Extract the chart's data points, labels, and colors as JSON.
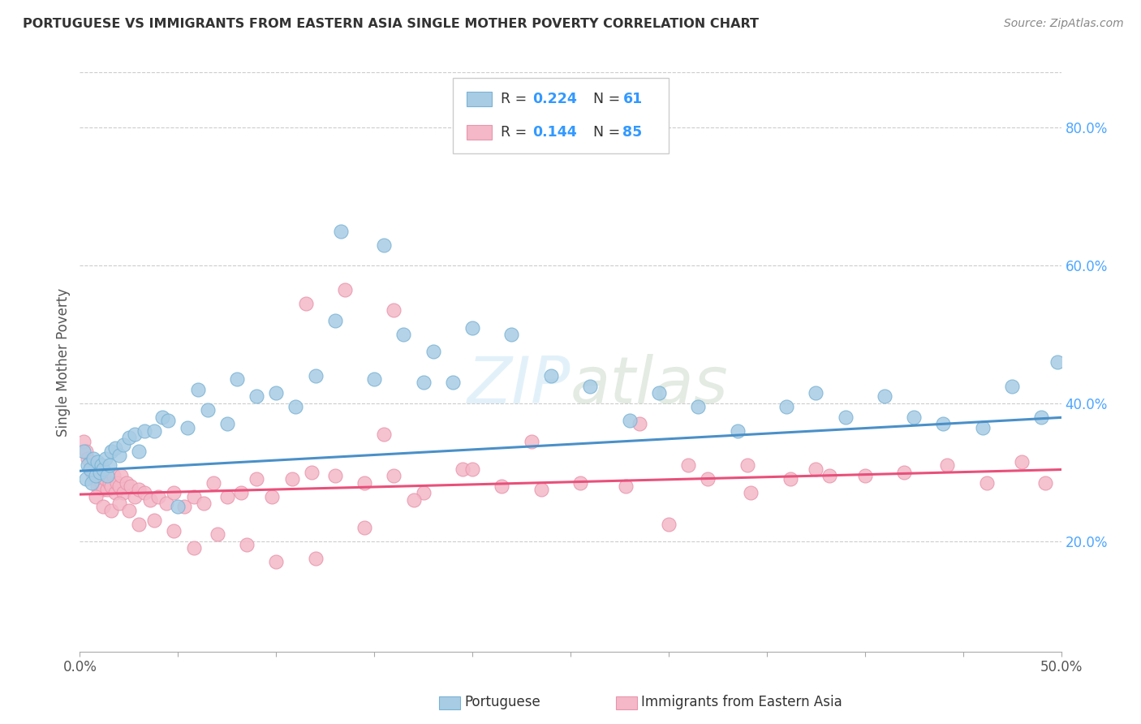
{
  "title": "PORTUGUESE VS IMMIGRANTS FROM EASTERN ASIA SINGLE MOTHER POVERTY CORRELATION CHART",
  "source": "Source: ZipAtlas.com",
  "ylabel": "Single Mother Poverty",
  "xlim": [
    0.0,
    0.5
  ],
  "ylim": [
    0.04,
    0.88
  ],
  "xtick_positions": [
    0.0,
    0.05,
    0.1,
    0.15,
    0.2,
    0.25,
    0.3,
    0.35,
    0.4,
    0.45,
    0.5
  ],
  "xticklabels": [
    "0.0%",
    "",
    "",
    "",
    "",
    "",
    "",
    "",
    "",
    "",
    "50.0%"
  ],
  "ytick_right_labels": [
    "20.0%",
    "40.0%",
    "60.0%",
    "80.0%"
  ],
  "ytick_right_values": [
    0.2,
    0.4,
    0.6,
    0.8
  ],
  "blue_color": "#a8cce4",
  "pink_color": "#f4b8c8",
  "blue_edge_color": "#7ab3d4",
  "pink_edge_color": "#e896ac",
  "blue_line_color": "#4a90c8",
  "pink_line_color": "#e8507a",
  "legend_r1": "0.224",
  "legend_n1": "61",
  "legend_r2": "0.144",
  "legend_n2": "85",
  "series1_label": "Portuguese",
  "series2_label": "Immigrants from Eastern Asia",
  "blue_intercept": 0.302,
  "blue_slope": 0.155,
  "pink_intercept": 0.268,
  "pink_slope": 0.072,
  "blue_x": [
    0.002,
    0.003,
    0.004,
    0.005,
    0.006,
    0.007,
    0.008,
    0.009,
    0.01,
    0.011,
    0.012,
    0.013,
    0.014,
    0.015,
    0.016,
    0.018,
    0.02,
    0.022,
    0.025,
    0.028,
    0.03,
    0.033,
    0.038,
    0.042,
    0.045,
    0.05,
    0.055,
    0.06,
    0.065,
    0.075,
    0.08,
    0.09,
    0.1,
    0.11,
    0.12,
    0.13,
    0.15,
    0.165,
    0.175,
    0.19,
    0.2,
    0.22,
    0.24,
    0.26,
    0.28,
    0.295,
    0.315,
    0.335,
    0.36,
    0.375,
    0.39,
    0.41,
    0.425,
    0.44,
    0.46,
    0.475,
    0.49,
    0.498,
    0.133,
    0.155,
    0.18
  ],
  "blue_y": [
    0.33,
    0.29,
    0.31,
    0.305,
    0.285,
    0.32,
    0.295,
    0.315,
    0.3,
    0.31,
    0.305,
    0.32,
    0.295,
    0.31,
    0.33,
    0.335,
    0.325,
    0.34,
    0.35,
    0.355,
    0.33,
    0.36,
    0.36,
    0.38,
    0.375,
    0.25,
    0.365,
    0.42,
    0.39,
    0.37,
    0.435,
    0.41,
    0.415,
    0.395,
    0.44,
    0.52,
    0.435,
    0.5,
    0.43,
    0.43,
    0.51,
    0.5,
    0.44,
    0.425,
    0.375,
    0.415,
    0.395,
    0.36,
    0.395,
    0.415,
    0.38,
    0.41,
    0.38,
    0.37,
    0.365,
    0.425,
    0.38,
    0.46,
    0.65,
    0.63,
    0.475
  ],
  "pink_x": [
    0.002,
    0.003,
    0.004,
    0.005,
    0.006,
    0.007,
    0.008,
    0.009,
    0.01,
    0.011,
    0.012,
    0.013,
    0.014,
    0.015,
    0.016,
    0.017,
    0.018,
    0.019,
    0.02,
    0.021,
    0.022,
    0.024,
    0.026,
    0.028,
    0.03,
    0.033,
    0.036,
    0.04,
    0.044,
    0.048,
    0.053,
    0.058,
    0.063,
    0.068,
    0.075,
    0.082,
    0.09,
    0.098,
    0.108,
    0.118,
    0.13,
    0.145,
    0.16,
    0.175,
    0.195,
    0.215,
    0.235,
    0.255,
    0.278,
    0.3,
    0.32,
    0.342,
    0.362,
    0.382,
    0.4,
    0.42,
    0.442,
    0.462,
    0.48,
    0.492,
    0.008,
    0.012,
    0.016,
    0.02,
    0.025,
    0.03,
    0.038,
    0.048,
    0.058,
    0.07,
    0.085,
    0.1,
    0.12,
    0.145,
    0.17,
    0.2,
    0.23,
    0.16,
    0.285,
    0.31,
    0.34,
    0.375,
    0.115,
    0.135,
    0.155
  ],
  "pink_y": [
    0.345,
    0.33,
    0.32,
    0.315,
    0.3,
    0.295,
    0.29,
    0.28,
    0.305,
    0.285,
    0.275,
    0.29,
    0.275,
    0.285,
    0.28,
    0.295,
    0.27,
    0.285,
    0.28,
    0.295,
    0.27,
    0.285,
    0.28,
    0.265,
    0.275,
    0.27,
    0.26,
    0.265,
    0.255,
    0.27,
    0.25,
    0.265,
    0.255,
    0.285,
    0.265,
    0.27,
    0.29,
    0.265,
    0.29,
    0.3,
    0.295,
    0.285,
    0.295,
    0.27,
    0.305,
    0.28,
    0.275,
    0.285,
    0.28,
    0.225,
    0.29,
    0.27,
    0.29,
    0.295,
    0.295,
    0.3,
    0.31,
    0.285,
    0.315,
    0.285,
    0.265,
    0.25,
    0.245,
    0.255,
    0.245,
    0.225,
    0.23,
    0.215,
    0.19,
    0.21,
    0.195,
    0.17,
    0.175,
    0.22,
    0.26,
    0.305,
    0.345,
    0.535,
    0.37,
    0.31,
    0.31,
    0.305,
    0.545,
    0.565,
    0.355
  ]
}
